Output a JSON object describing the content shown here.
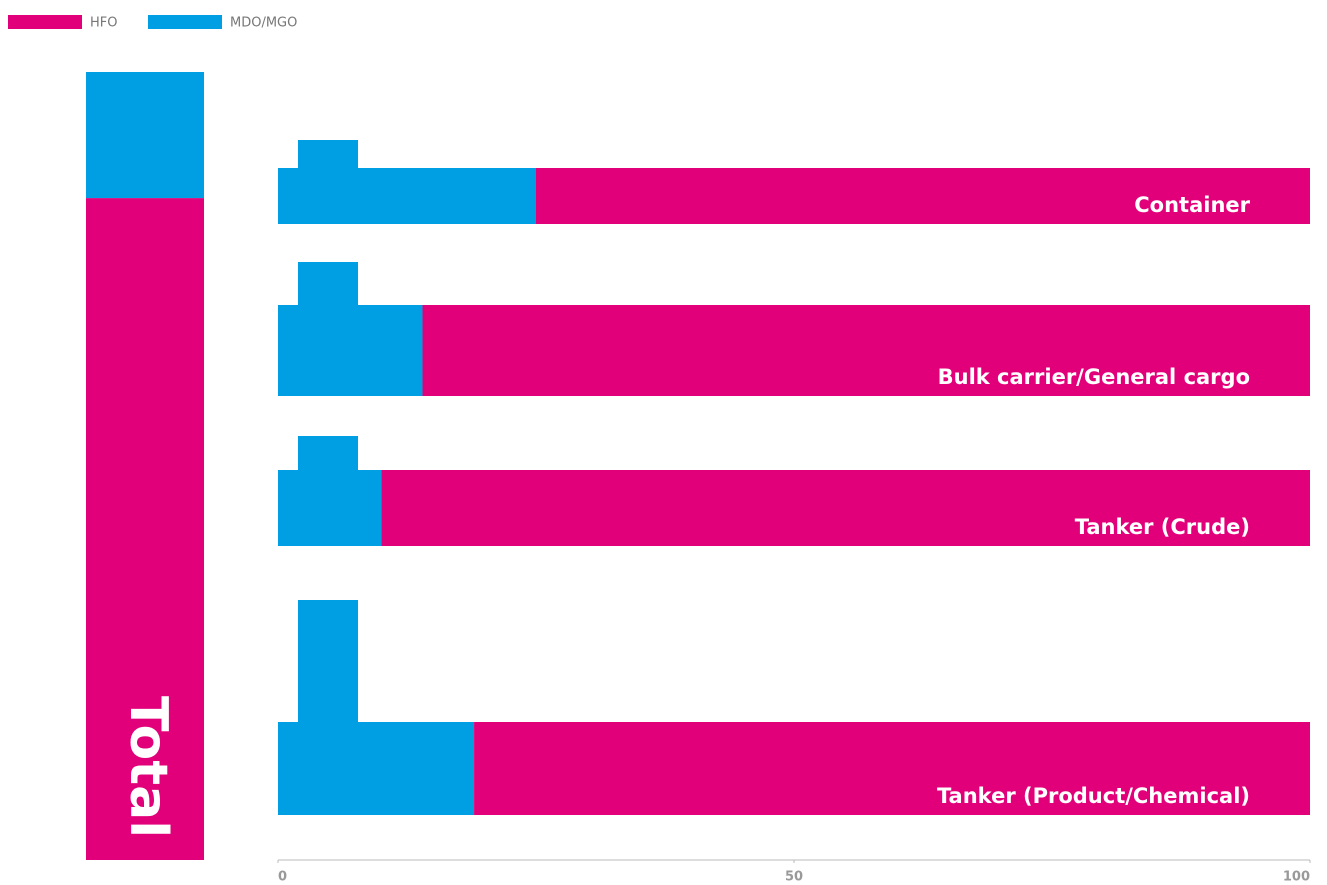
{
  "chart_data": [
    {
      "type": "bar",
      "orientation": "vertical",
      "stacked": true,
      "categories": [
        "Total"
      ],
      "series": [
        {
          "name": "HFO",
          "color": "#e2007a",
          "values": [
            84
          ]
        },
        {
          "name": "MDO/MGO",
          "color": "#009fe3",
          "values": [
            16
          ]
        }
      ],
      "ylim": [
        0,
        100
      ]
    },
    {
      "type": "bar",
      "orientation": "horizontal",
      "stacked": true,
      "categories": [
        "Container",
        "Bulk carrier/General cargo",
        "Tanker (Crude)",
        "Tanker (Product/Chemical)"
      ],
      "series": [
        {
          "name": "MDO/MGO",
          "color": "#009fe3",
          "values": [
            25,
            14,
            10,
            19
          ]
        },
        {
          "name": "HFO",
          "color": "#e2007a",
          "values": [
            75,
            86,
            90,
            81
          ]
        }
      ],
      "xlim": [
        0,
        100
      ],
      "xticks": [
        0,
        50,
        100
      ]
    }
  ]
}
